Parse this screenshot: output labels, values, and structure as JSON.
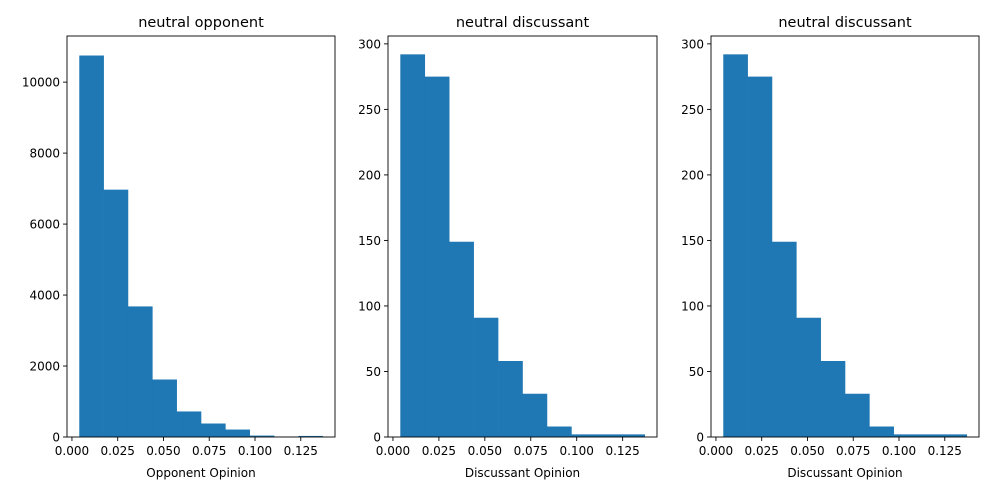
{
  "colors": {
    "bar": "#1f77b4",
    "axis": "#000000",
    "background": "#ffffff"
  },
  "chart_data": [
    {
      "type": "bar",
      "title": "neutral opponent",
      "xlabel": "Opponent Opinion",
      "ylabel": "",
      "bin_edges": [
        0.004,
        0.0173,
        0.0306,
        0.0439,
        0.0572,
        0.0705,
        0.0838,
        0.0971,
        0.1104,
        0.1237,
        0.137
      ],
      "values": [
        10750,
        6970,
        3680,
        1620,
        720,
        380,
        210,
        40,
        10,
        30
      ],
      "xlim": [
        -0.0027,
        0.1437
      ],
      "ylim": [
        0,
        11300
      ],
      "xticks": [
        0.0,
        0.025,
        0.05,
        0.075,
        0.1,
        0.125
      ],
      "xtick_labels": [
        "0.000",
        "0.025",
        "0.050",
        "0.075",
        "0.100",
        "0.125"
      ],
      "yticks": [
        0,
        2000,
        4000,
        6000,
        8000,
        10000
      ],
      "ytick_labels": [
        "0",
        "2000",
        "4000",
        "6000",
        "8000",
        "10000"
      ],
      "grid": false
    },
    {
      "type": "bar",
      "title": "neutral discussant",
      "xlabel": "Discussant Opinion",
      "ylabel": "",
      "bin_edges": [
        0.004,
        0.0173,
        0.0306,
        0.0439,
        0.0572,
        0.0705,
        0.0838,
        0.0971,
        0.1104,
        0.1237,
        0.137
      ],
      "values": [
        292,
        275,
        149,
        91,
        58,
        33,
        8,
        2,
        2,
        2
      ],
      "xlim": [
        -0.0027,
        0.1437
      ],
      "ylim": [
        0,
        306
      ],
      "xticks": [
        0.0,
        0.025,
        0.05,
        0.075,
        0.1,
        0.125
      ],
      "xtick_labels": [
        "0.000",
        "0.025",
        "0.050",
        "0.075",
        "0.100",
        "0.125"
      ],
      "yticks": [
        0,
        50,
        100,
        150,
        200,
        250,
        300
      ],
      "ytick_labels": [
        "0",
        "50",
        "100",
        "150",
        "200",
        "250",
        "300"
      ],
      "grid": false
    },
    {
      "type": "bar",
      "title": "neutral discussant",
      "xlabel": "Discussant Opinion",
      "ylabel": "",
      "bin_edges": [
        0.004,
        0.0173,
        0.0306,
        0.0439,
        0.0572,
        0.0705,
        0.0838,
        0.0971,
        0.1104,
        0.1237,
        0.137
      ],
      "values": [
        292,
        275,
        149,
        91,
        58,
        33,
        8,
        2,
        2,
        2
      ],
      "xlim": [
        -0.0027,
        0.1437
      ],
      "ylim": [
        0,
        306
      ],
      "xticks": [
        0.0,
        0.025,
        0.05,
        0.075,
        0.1,
        0.125
      ],
      "xtick_labels": [
        "0.000",
        "0.025",
        "0.050",
        "0.075",
        "0.100",
        "0.125"
      ],
      "yticks": [
        0,
        50,
        100,
        150,
        200,
        250,
        300
      ],
      "ytick_labels": [
        "0",
        "50",
        "100",
        "150",
        "200",
        "250",
        "300"
      ],
      "grid": false
    }
  ]
}
